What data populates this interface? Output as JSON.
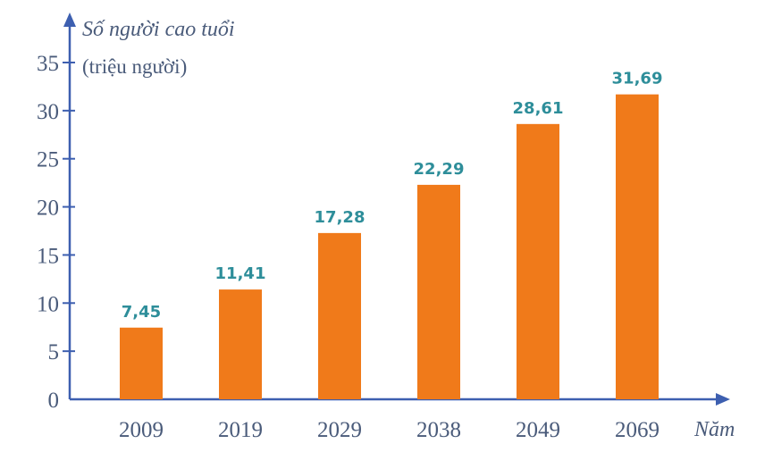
{
  "chart_data": {
    "type": "bar",
    "ylabel": "Số người cao tuổi",
    "yunit": "(triệu người)",
    "xlabel": "Năm",
    "categories": [
      "2009",
      "2019",
      "2029",
      "2038",
      "2049",
      "2069"
    ],
    "values": [
      7.45,
      11.41,
      17.28,
      22.29,
      28.61,
      31.69
    ],
    "value_labels": [
      "7,45",
      "11,41",
      "17,28",
      "22,29",
      "28,61",
      "31,69"
    ],
    "yticks": [
      "0",
      "5",
      "10",
      "15",
      "20",
      "25",
      "30",
      "35"
    ],
    "ylim": [
      0,
      35
    ],
    "grid": false,
    "colors": {
      "bar": "#f07a1a",
      "axis": "#3d5fb0",
      "label": "#2e8e9a",
      "text": "#4a5b7a"
    }
  }
}
